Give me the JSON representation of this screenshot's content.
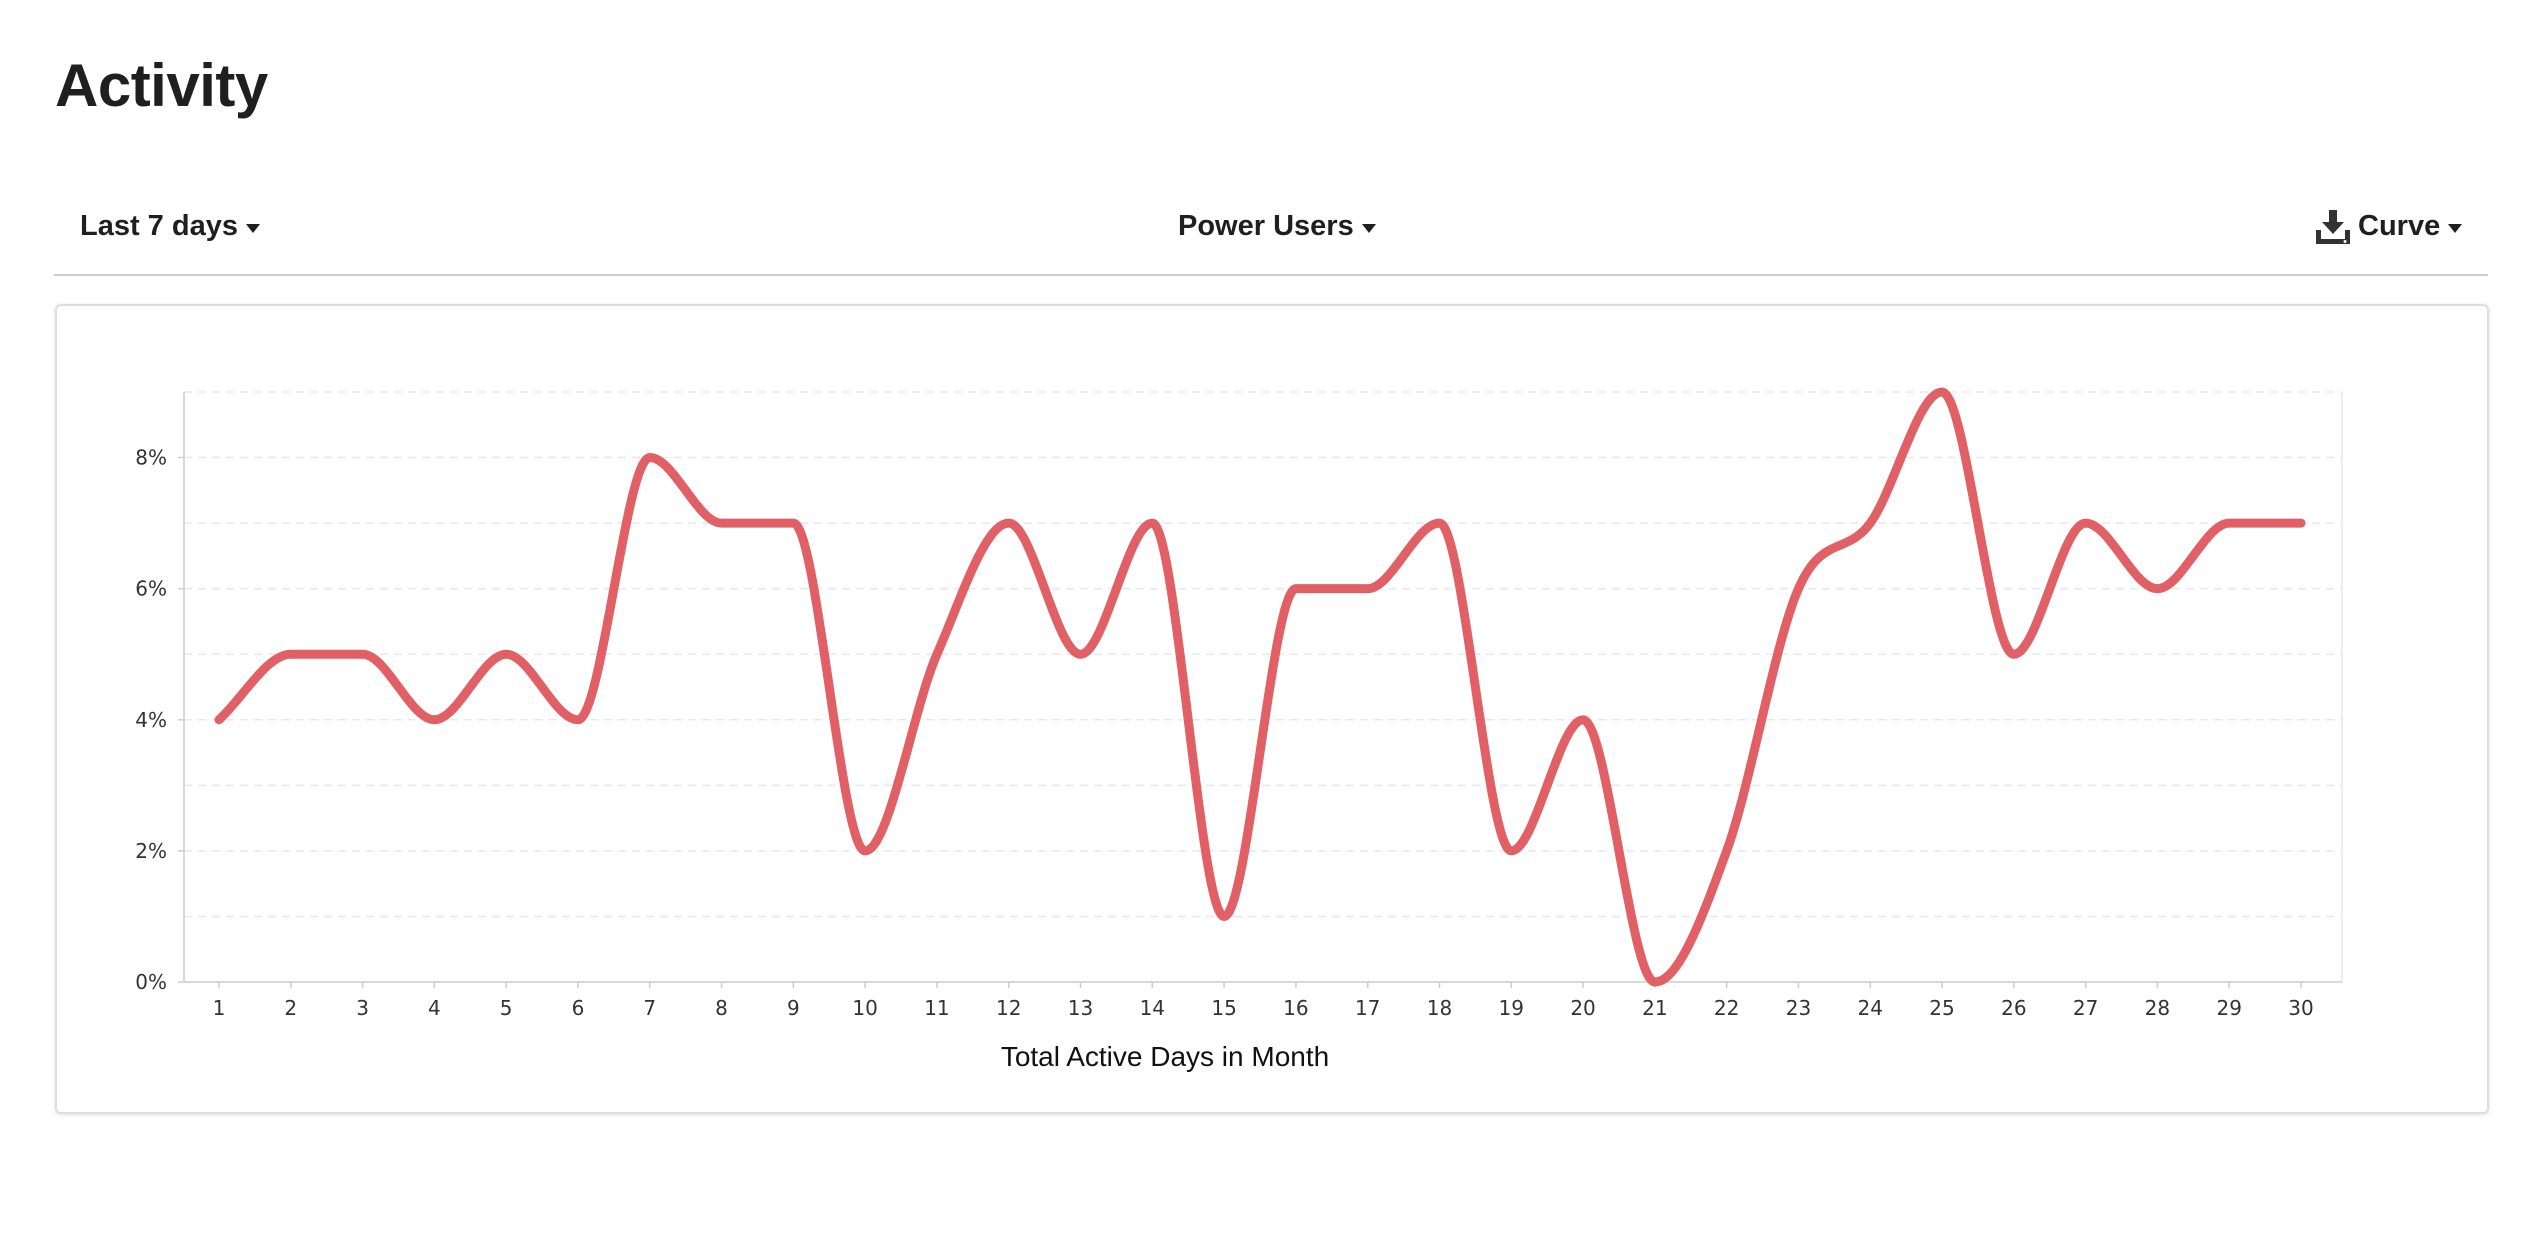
{
  "page": {
    "title": "Activity"
  },
  "toolbar": {
    "range_label": "Last 7 days",
    "segment_label": "Power Users",
    "chart_type_label": "Curve",
    "export_icon": "download-icon"
  },
  "colors": {
    "series": "#e06065",
    "grid": "#e8e8e8",
    "axis": "#cccccc"
  },
  "chart_data": {
    "type": "line",
    "curve": "smooth",
    "x": [
      1,
      2,
      3,
      4,
      5,
      6,
      7,
      8,
      9,
      10,
      11,
      12,
      13,
      14,
      15,
      16,
      17,
      18,
      19,
      20,
      21,
      22,
      23,
      24,
      25,
      26,
      27,
      28,
      29,
      30
    ],
    "series": [
      {
        "values": [
          4,
          5,
          5,
          4,
          5,
          4,
          8,
          7,
          7,
          2,
          5,
          7,
          5,
          7,
          1,
          6,
          6,
          7,
          2,
          4,
          0,
          2,
          6,
          7,
          9,
          5,
          7,
          6,
          7,
          7
        ]
      }
    ],
    "y_ticks": [
      0,
      2,
      4,
      6,
      8
    ],
    "y_tick_labels": [
      "0%",
      "2%",
      "4%",
      "6%",
      "8%"
    ],
    "ylim": [
      0,
      9
    ],
    "xlabel": "Total Active Days in Month",
    "ylabel": "",
    "grid": "horizontal dashed",
    "legend": "none"
  }
}
